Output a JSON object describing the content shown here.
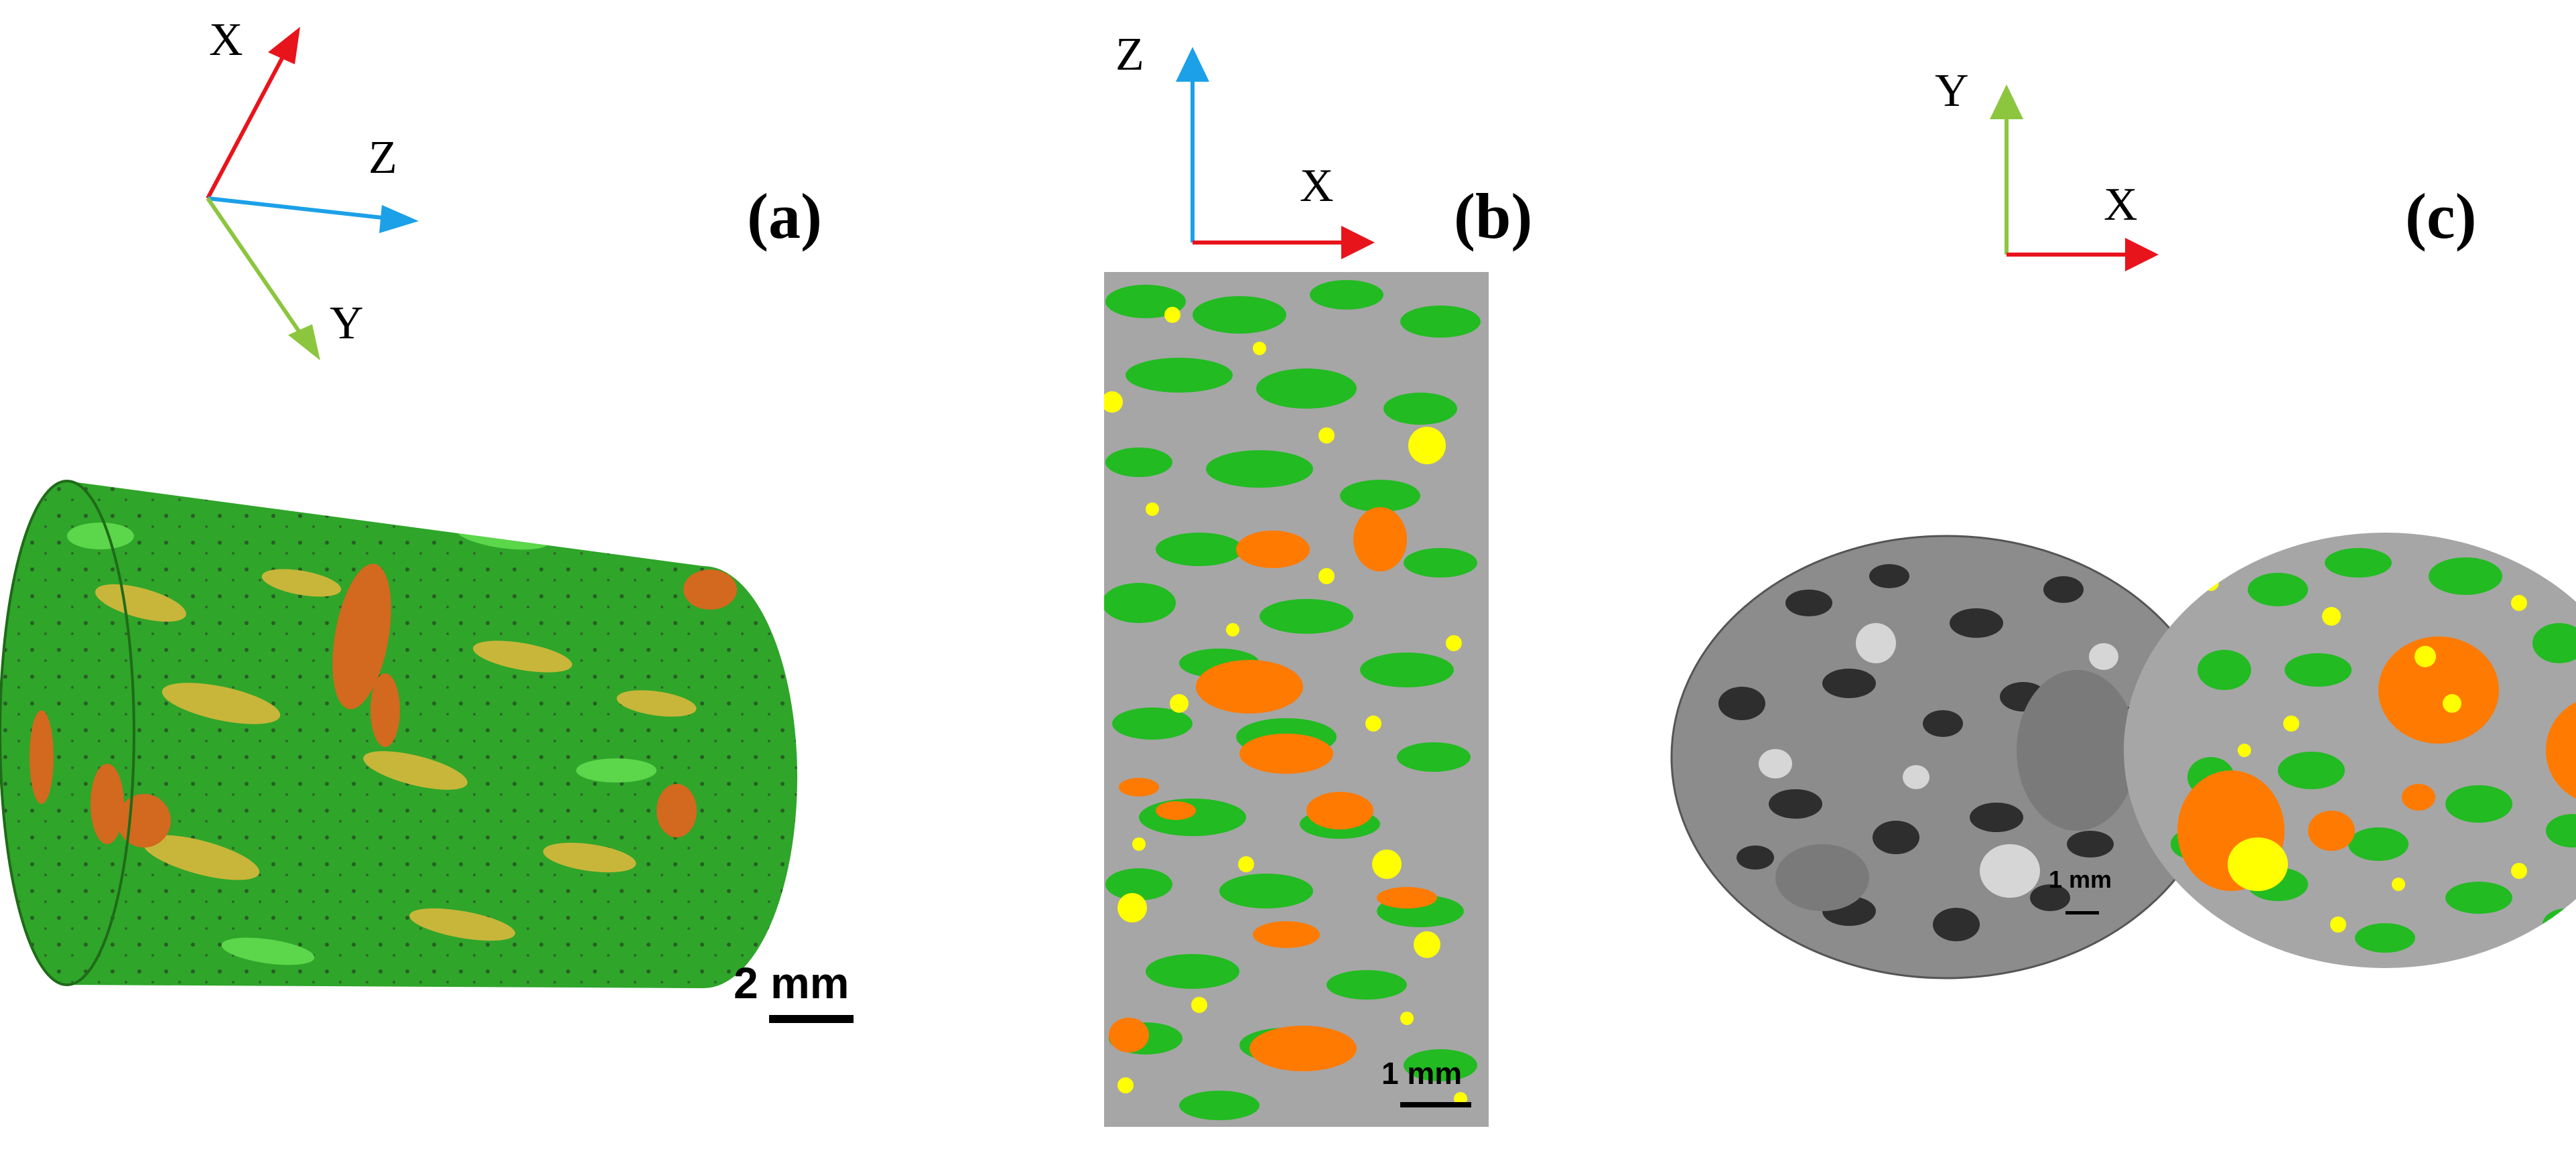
{
  "colors": {
    "x_axis": "#e8141c",
    "y_axis": "#8cc63f",
    "z_axis": "#1ca0e8",
    "grain_green": "#22bb22",
    "grain_yellow": "#ffff00",
    "grain_orange": "#ff7a00",
    "matrix_gray": "#a6a6a6"
  },
  "panel_a": {
    "label": "(a)",
    "axes": {
      "x": "X",
      "y": "Y",
      "z": "Z"
    },
    "scale_bar": "2 mm"
  },
  "panel_b": {
    "label": "(b)",
    "axes": {
      "z": "Z",
      "x": "X"
    },
    "scale_bar": "1 mm"
  },
  "panel_c": {
    "label": "(c)",
    "axes": {
      "y": "Y",
      "x": "X"
    },
    "scale_bar": "1 mm"
  }
}
